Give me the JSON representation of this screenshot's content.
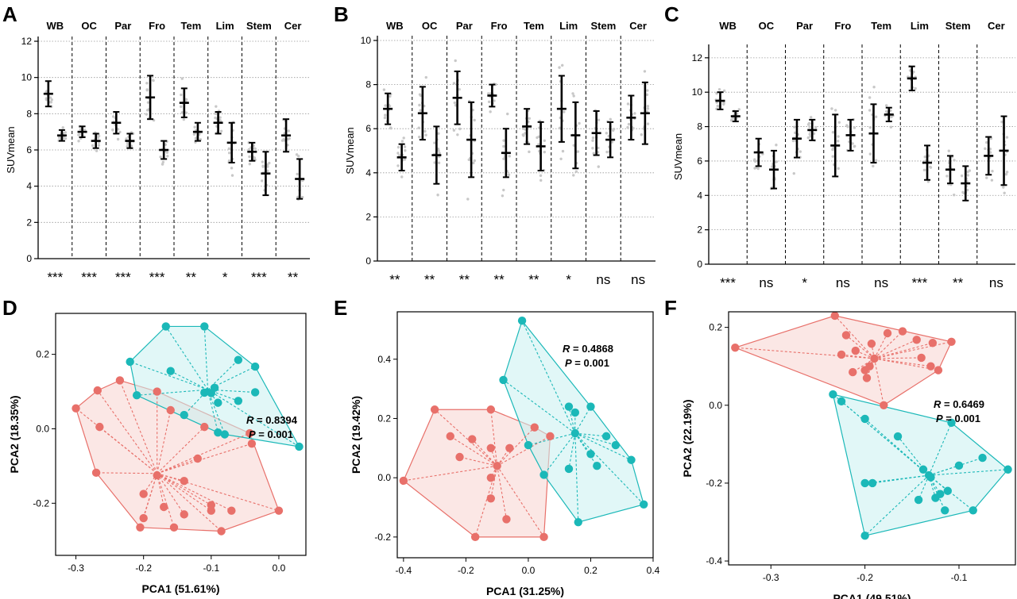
{
  "colors": {
    "group1": "#e8706a",
    "group2": "#1bb8b8",
    "fill1": "#f8d4d0",
    "fill2": "#c8f0f0"
  },
  "panels": {
    "A": {
      "letter": "A"
    },
    "B": {
      "letter": "B"
    },
    "C": {
      "letter": "C"
    },
    "D": {
      "letter": "D"
    },
    "E": {
      "letter": "E"
    },
    "F": {
      "letter": "F"
    }
  },
  "chart_data": [
    {
      "id": "A",
      "type": "scatter",
      "ylabel": "SUVmean",
      "ylim": [
        0,
        12
      ],
      "yticks": [
        0,
        2,
        4,
        6,
        8,
        10,
        12
      ],
      "yticklabels": [
        "0",
        "2",
        "4",
        "6",
        "8",
        "10",
        "12"
      ],
      "categories": [
        "WB",
        "OC",
        "Par",
        "Fro",
        "Tem",
        "Lim",
        "Stem",
        "Cer"
      ],
      "significance": [
        "***",
        "***",
        "***",
        "***",
        "**",
        "*",
        "***",
        "**"
      ],
      "series": [
        {
          "mean": [
            9.1,
            7.0,
            7.5,
            8.9,
            8.6,
            7.5,
            5.9,
            6.8
          ],
          "sd": [
            0.7,
            0.3,
            0.6,
            1.2,
            0.8,
            0.6,
            0.5,
            0.9
          ]
        },
        {
          "mean": [
            6.8,
            6.5,
            6.5,
            6.0,
            7.0,
            6.4,
            4.7,
            4.4
          ],
          "sd": [
            0.3,
            0.4,
            0.4,
            0.5,
            0.5,
            1.1,
            1.2,
            1.1
          ]
        }
      ]
    },
    {
      "id": "B",
      "type": "scatter",
      "ylabel": "SUVmean",
      "ylim": [
        0,
        10
      ],
      "yticks": [
        0,
        2,
        4,
        6,
        8,
        10
      ],
      "yticklabels": [
        "0",
        "2",
        "4",
        "6",
        "8",
        "10"
      ],
      "categories": [
        "WB",
        "OC",
        "Par",
        "Fro",
        "Tem",
        "Lim",
        "Stem",
        "Cer"
      ],
      "significance": [
        "**",
        "**",
        "**",
        "**",
        "**",
        "*",
        "ns",
        "ns"
      ],
      "series": [
        {
          "mean": [
            6.9,
            6.7,
            7.4,
            7.5,
            6.1,
            6.9,
            5.8,
            6.5
          ],
          "sd": [
            0.7,
            1.2,
            1.2,
            0.5,
            0.8,
            1.5,
            1.0,
            1.0
          ]
        },
        {
          "mean": [
            4.7,
            4.8,
            5.5,
            4.9,
            5.2,
            5.7,
            5.5,
            6.7
          ],
          "sd": [
            0.6,
            1.3,
            1.7,
            1.1,
            1.1,
            1.5,
            0.8,
            1.4
          ]
        }
      ]
    },
    {
      "id": "C",
      "type": "scatter",
      "ylabel": "SUVmean",
      "ylim": [
        0,
        12.5
      ],
      "yticks": [
        0,
        2,
        4,
        6,
        8,
        10,
        12
      ],
      "yticklabels": [
        "0",
        "2",
        "4",
        "6",
        "8",
        "10",
        "12"
      ],
      "categories": [
        "WB",
        "OC",
        "Par",
        "Fro",
        "Tem",
        "Lim",
        "Stem",
        "Cer"
      ],
      "significance": [
        "***",
        "ns",
        "*",
        "ns",
        "ns",
        "***",
        "**",
        "ns"
      ],
      "series": [
        {
          "mean": [
            9.5,
            6.5,
            7.3,
            6.9,
            7.6,
            10.8,
            5.5,
            6.3
          ],
          "sd": [
            0.5,
            0.8,
            1.1,
            1.8,
            1.7,
            0.7,
            0.8,
            1.1
          ]
        },
        {
          "mean": [
            8.6,
            5.5,
            7.8,
            7.5,
            8.7,
            5.9,
            4.7,
            6.6
          ],
          "sd": [
            0.3,
            1.1,
            0.6,
            0.9,
            0.4,
            1.0,
            1.0,
            2.0
          ]
        }
      ]
    },
    {
      "id": "D",
      "type": "scatter",
      "xlabel": "PCA1 (51.61%)",
      "ylabel": "PCA2 (18.35%)",
      "xlim": [
        -0.33,
        0.04
      ],
      "ylim": [
        -0.34,
        0.31
      ],
      "xticks": [
        -0.3,
        -0.2,
        -0.1,
        0.0
      ],
      "xticklabels": [
        "-0.3",
        "-0.2",
        "-0.1",
        "0.0"
      ],
      "yticks": [
        -0.2,
        0.0,
        0.2
      ],
      "yticklabels": [
        "-0.2",
        "0.0",
        "0.2"
      ],
      "stats": {
        "r_label": "R",
        "r_value": " = 0.8394",
        "p_label": "P",
        "p_value": " = 0.001"
      },
      "series": [
        {
          "centroid": [
            -0.18,
            -0.12
          ],
          "points": [
            [
              -0.3,
              0.055
            ],
            [
              -0.265,
              0.005
            ],
            [
              -0.268,
              0.103
            ],
            [
              -0.27,
              -0.118
            ],
            [
              -0.235,
              0.13
            ],
            [
              -0.18,
              0.1
            ],
            [
              -0.16,
              0.05
            ],
            [
              -0.11,
              0.005
            ],
            [
              -0.043,
              -0.012
            ],
            [
              -0.04,
              -0.04
            ],
            [
              -0.12,
              -0.08
            ],
            [
              -0.14,
              -0.14
            ],
            [
              -0.1,
              -0.205
            ],
            [
              -0.07,
              -0.22
            ],
            [
              -0.1,
              -0.22
            ],
            [
              -0.14,
              -0.23
            ],
            [
              -0.17,
              -0.21
            ],
            [
              -0.2,
              -0.175
            ],
            [
              -0.2,
              -0.24
            ],
            [
              -0.205,
              -0.265
            ],
            [
              -0.155,
              -0.265
            ],
            [
              -0.085,
              -0.275
            ],
            [
              0.0,
              -0.22
            ],
            [
              -0.18,
              -0.125
            ]
          ]
        },
        {
          "centroid": [
            -0.105,
            0.105
          ],
          "points": [
            [
              -0.167,
              0.275
            ],
            [
              -0.11,
              0.275
            ],
            [
              -0.22,
              0.18
            ],
            [
              -0.06,
              0.185
            ],
            [
              -0.035,
              0.167
            ],
            [
              -0.16,
              0.155
            ],
            [
              -0.095,
              0.11
            ],
            [
              -0.035,
              0.098
            ],
            [
              -0.06,
              0.075
            ],
            [
              -0.11,
              0.097
            ],
            [
              -0.1,
              0.096
            ],
            [
              -0.09,
              0.07
            ],
            [
              -0.14,
              0.037
            ],
            [
              -0.08,
              -0.015
            ],
            [
              -0.09,
              -0.01
            ],
            [
              0.03,
              -0.048
            ],
            [
              -0.21,
              0.09
            ]
          ]
        }
      ]
    },
    {
      "id": "E",
      "type": "scatter",
      "xlabel": "PCA1 (31.25%)",
      "ylabel": "PCA2 (19.42%)",
      "xlim": [
        -0.42,
        0.4
      ],
      "ylim": [
        -0.27,
        0.56
      ],
      "xticks": [
        -0.4,
        -0.2,
        0.0,
        0.2,
        0.4
      ],
      "xticklabels": [
        "-0.4",
        "-0.2",
        "0.0",
        "0.2",
        "0.4"
      ],
      "yticks": [
        -0.2,
        0.0,
        0.2,
        0.4
      ],
      "yticklabels": [
        "-0.2",
        "0.0",
        "0.2",
        "0.4"
      ],
      "stats": {
        "r_label": "R",
        "r_value": " = 0.4868",
        "p_label": "P",
        "p_value": " = 0.001"
      },
      "series": [
        {
          "centroid": [
            -0.1,
            0.04
          ],
          "points": [
            [
              -0.4,
              -0.01
            ],
            [
              -0.3,
              0.23
            ],
            [
              -0.25,
              0.14
            ],
            [
              -0.22,
              0.07
            ],
            [
              -0.18,
              0.13
            ],
            [
              -0.17,
              -0.2
            ],
            [
              -0.12,
              0.23
            ],
            [
              -0.12,
              0.1
            ],
            [
              -0.12,
              0.0
            ],
            [
              -0.12,
              -0.07
            ],
            [
              -0.06,
              0.1
            ],
            [
              -0.07,
              -0.14
            ],
            [
              0.02,
              0.17
            ],
            [
              0.05,
              -0.2
            ],
            [
              0.07,
              0.14
            ],
            [
              -0.1,
              0.04
            ]
          ]
        },
        {
          "centroid": [
            0.15,
            0.15
          ],
          "points": [
            [
              -0.02,
              0.53
            ],
            [
              -0.08,
              0.33
            ],
            [
              0.13,
              0.24
            ],
            [
              0.15,
              0.22
            ],
            [
              0.2,
              0.24
            ],
            [
              0.25,
              0.14
            ],
            [
              0.28,
              0.11
            ],
            [
              0.2,
              0.08
            ],
            [
              0.22,
              0.04
            ],
            [
              0.37,
              -0.09
            ],
            [
              0.33,
              0.06
            ],
            [
              0.16,
              -0.15
            ],
            [
              0.13,
              0.03
            ],
            [
              0.05,
              0.01
            ],
            [
              0.0,
              0.11
            ],
            [
              0.15,
              0.15
            ]
          ]
        }
      ]
    },
    {
      "id": "F",
      "type": "scatter",
      "xlabel": "PCA1 (49.51%)",
      "ylabel": "PCA2 (22.19%)",
      "xlim": [
        -0.345,
        -0.04
      ],
      "ylim": [
        -0.41,
        0.24
      ],
      "xticks": [
        -0.3,
        -0.2,
        -0.1
      ],
      "xticklabels": [
        "-0.3",
        "-0.2",
        "-0.1"
      ],
      "yticks": [
        -0.4,
        -0.2,
        0.0,
        0.2
      ],
      "yticklabels": [
        "-0.4",
        "-0.2",
        "0.0",
        "0.2"
      ],
      "stats": {
        "r_label": "R",
        "r_value": " = 0.6469",
        "p_label": "P",
        "p_value": " = 0.001"
      },
      "series": [
        {
          "centroid": [
            -0.19,
            0.12
          ],
          "points": [
            [
              -0.338,
              0.148
            ],
            [
              -0.232,
              0.23
            ],
            [
              -0.22,
              0.18
            ],
            [
              -0.21,
              0.14
            ],
            [
              -0.193,
              0.158
            ],
            [
              -0.176,
              0.185
            ],
            [
              -0.16,
              0.19
            ],
            [
              -0.145,
              0.168
            ],
            [
              -0.128,
              0.16
            ],
            [
              -0.108,
              0.163
            ],
            [
              -0.14,
              0.122
            ],
            [
              -0.13,
              0.1
            ],
            [
              -0.122,
              0.09
            ],
            [
              -0.195,
              0.1
            ],
            [
              -0.2,
              0.09
            ],
            [
              -0.198,
              0.07
            ],
            [
              -0.213,
              0.085
            ],
            [
              -0.225,
              0.13
            ],
            [
              -0.18,
              0.0
            ],
            [
              -0.19,
              0.12
            ]
          ]
        },
        {
          "centroid": [
            -0.132,
            -0.18
          ],
          "points": [
            [
              -0.234,
              0.028
            ],
            [
              -0.225,
              0.01
            ],
            [
              -0.2,
              -0.035
            ],
            [
              -0.165,
              -0.08
            ],
            [
              -0.108,
              -0.045
            ],
            [
              -0.075,
              -0.135
            ],
            [
              -0.048,
              -0.165
            ],
            [
              -0.1,
              -0.155
            ],
            [
              -0.138,
              -0.165
            ],
            [
              -0.13,
              -0.185
            ],
            [
              -0.112,
              -0.22
            ],
            [
              -0.085,
              -0.27
            ],
            [
              -0.12,
              -0.228
            ],
            [
              -0.125,
              -0.238
            ],
            [
              -0.143,
              -0.243
            ],
            [
              -0.115,
              -0.27
            ],
            [
              -0.2,
              -0.2
            ],
            [
              -0.192,
              -0.2
            ],
            [
              -0.2,
              -0.335
            ],
            [
              -0.132,
              -0.18
            ]
          ]
        }
      ]
    }
  ]
}
